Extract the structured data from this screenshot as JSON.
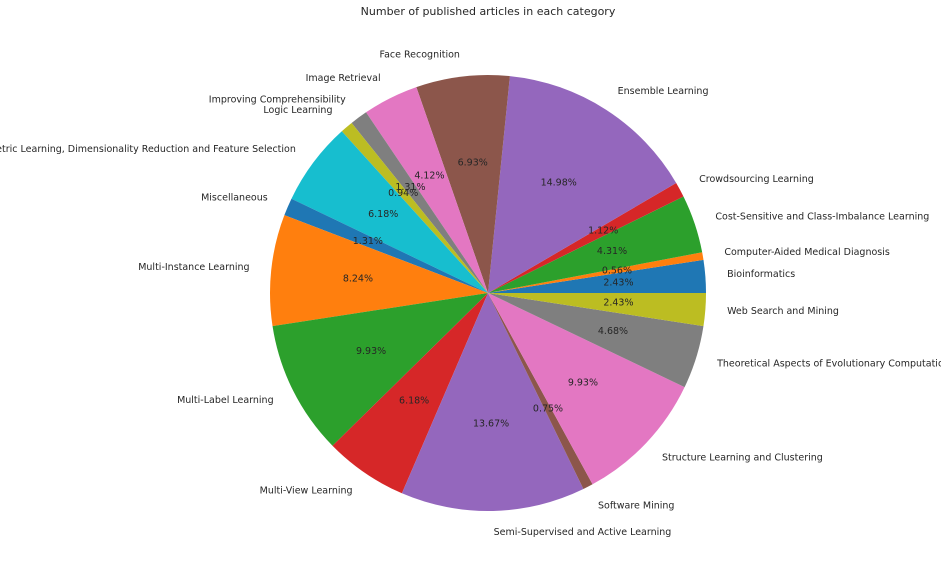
{
  "chart_data": {
    "type": "pie",
    "title": "Number of published articles in each category",
    "categories": [
      "Bioinformatics",
      "Computer-Aided Medical Diagnosis",
      "Cost-Sensitive and Class-Imbalance Learning",
      "Crowdsourcing Learning",
      "Ensemble Learning",
      "Face Recognition",
      "Image Retrieval",
      "Improving Comprehensibility",
      "Logic Learning",
      "Metric Learning, Dimensionality Reduction and Feature Selection",
      "Miscellaneous",
      "Multi-Instance Learning",
      "Multi-Label Learning",
      "Multi-View Learning",
      "Semi-Supervised and Active Learning",
      "Software Mining",
      "Structure Learning and Clustering",
      "Theoretical Aspects of Evolutionary Computation",
      "Web Search and Mining"
    ],
    "values": [
      2.43,
      0.56,
      4.31,
      1.12,
      14.98,
      6.93,
      4.12,
      1.31,
      0.94,
      6.18,
      1.31,
      8.24,
      9.93,
      6.18,
      13.67,
      0.75,
      9.93,
      4.68,
      2.43
    ],
    "value_labels": [
      "2.43%",
      "0.56%",
      "4.31%",
      "1.12%",
      "14.98%",
      "6.93%",
      "4.12%",
      "1.31%",
      "0.94%",
      "6.18%",
      "1.31%",
      "8.24%",
      "9.93%",
      "6.18%",
      "13.67%",
      "0.75%",
      "9.93%",
      "4.68%",
      "2.43%"
    ],
    "colors": [
      "#1f77b4",
      "#ff7f0e",
      "#2ca02c",
      "#d62728",
      "#9467bd",
      "#8c564b",
      "#e377c2",
      "#7f7f7f",
      "#bcbd22",
      "#17becf",
      "#1f77b4",
      "#ff7f0e",
      "#2ca02c",
      "#d62728",
      "#9467bd",
      "#8c564b",
      "#e377c2",
      "#7f7f7f",
      "#bcbd22"
    ]
  }
}
